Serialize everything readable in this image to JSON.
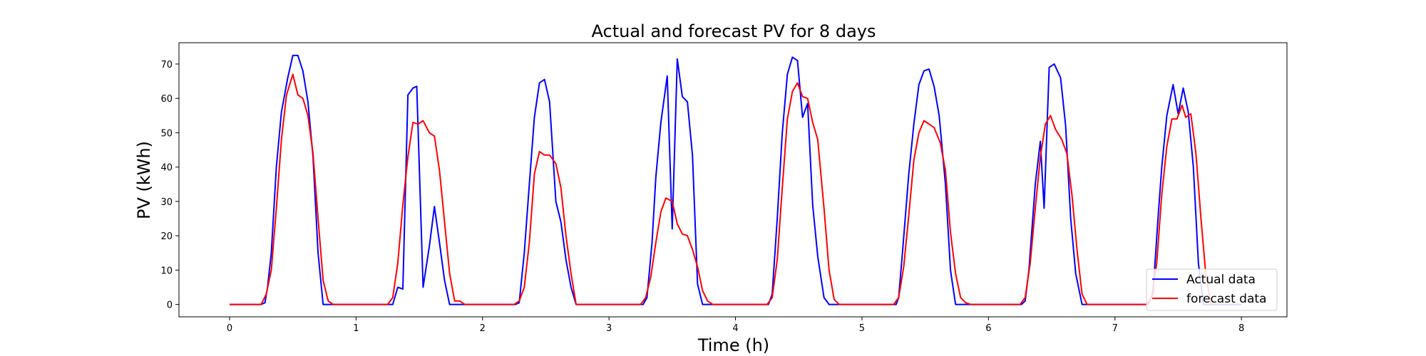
{
  "chart_data": {
    "type": "line",
    "title": "Actual and forecast PV for 8 days",
    "xlabel": "Time (h)",
    "ylabel": "PV (kWh)",
    "xlim": [
      -0.4,
      8.36
    ],
    "ylim": [
      -3.6,
      76.2
    ],
    "xticks": [
      0,
      1,
      2,
      3,
      4,
      5,
      6,
      7,
      8
    ],
    "yticks": [
      0,
      10,
      20,
      30,
      40,
      50,
      60,
      70
    ],
    "grid": false,
    "legend_position": "lower-right",
    "series": [
      {
        "name": "Actual data",
        "color": "#0000ff",
        "points": [
          [
            0,
            0
          ],
          [
            0.25,
            0
          ],
          [
            0.28,
            0.5
          ],
          [
            0.3,
            5
          ],
          [
            0.33,
            15
          ],
          [
            0.37,
            40
          ],
          [
            0.41,
            56
          ],
          [
            0.46,
            66
          ],
          [
            0.5,
            72.5
          ],
          [
            0.54,
            72.5
          ],
          [
            0.58,
            68
          ],
          [
            0.62,
            59
          ],
          [
            0.66,
            43
          ],
          [
            0.7,
            15
          ],
          [
            0.74,
            0
          ],
          [
            1,
            0
          ],
          [
            1.29,
            0
          ],
          [
            1.33,
            5
          ],
          [
            1.37,
            4.5
          ],
          [
            1.41,
            61
          ],
          [
            1.45,
            63
          ],
          [
            1.48,
            63.5
          ],
          [
            1.53,
            5
          ],
          [
            1.58,
            17
          ],
          [
            1.62,
            28.5
          ],
          [
            1.66,
            18
          ],
          [
            1.7,
            7
          ],
          [
            1.74,
            0
          ],
          [
            2,
            0
          ],
          [
            2.26,
            0
          ],
          [
            2.29,
            0.5
          ],
          [
            2.33,
            15
          ],
          [
            2.37,
            35
          ],
          [
            2.41,
            54.5
          ],
          [
            2.45,
            64.5
          ],
          [
            2.49,
            65.5
          ],
          [
            2.53,
            59
          ],
          [
            2.58,
            30
          ],
          [
            2.62,
            24
          ],
          [
            2.66,
            13
          ],
          [
            2.7,
            5
          ],
          [
            2.74,
            0
          ],
          [
            3,
            0
          ],
          [
            3.27,
            0
          ],
          [
            3.3,
            2
          ],
          [
            3.34,
            18
          ],
          [
            3.37,
            37
          ],
          [
            3.41,
            53
          ],
          [
            3.46,
            66.5
          ],
          [
            3.5,
            22
          ],
          [
            3.54,
            71.5
          ],
          [
            3.58,
            60.5
          ],
          [
            3.62,
            59
          ],
          [
            3.66,
            43.5
          ],
          [
            3.7,
            6
          ],
          [
            3.74,
            0
          ],
          [
            4,
            0
          ],
          [
            4.26,
            0
          ],
          [
            4.29,
            3
          ],
          [
            4.33,
            25
          ],
          [
            4.37,
            50
          ],
          [
            4.41,
            67
          ],
          [
            4.45,
            72
          ],
          [
            4.49,
            71
          ],
          [
            4.53,
            54.5
          ],
          [
            4.57,
            58.5
          ],
          [
            4.61,
            29
          ],
          [
            4.65,
            14
          ],
          [
            4.7,
            2
          ],
          [
            4.74,
            0
          ],
          [
            5,
            0
          ],
          [
            5.27,
            0
          ],
          [
            5.29,
            2
          ],
          [
            5.32,
            15
          ],
          [
            5.37,
            38
          ],
          [
            5.41,
            52.5
          ],
          [
            5.45,
            64
          ],
          [
            5.49,
            68
          ],
          [
            5.53,
            68.5
          ],
          [
            5.57,
            63.5
          ],
          [
            5.61,
            55
          ],
          [
            5.66,
            35
          ],
          [
            5.7,
            10
          ],
          [
            5.74,
            0
          ],
          [
            6,
            0
          ],
          [
            6.26,
            0
          ],
          [
            6.29,
            1
          ],
          [
            6.32,
            10
          ],
          [
            6.37,
            35
          ],
          [
            6.41,
            47.5
          ],
          [
            6.44,
            28
          ],
          [
            6.48,
            69
          ],
          [
            6.52,
            70
          ],
          [
            6.57,
            66
          ],
          [
            6.61,
            52
          ],
          [
            6.65,
            25
          ],
          [
            6.69,
            9
          ],
          [
            6.74,
            0
          ],
          [
            7,
            0
          ],
          [
            7.26,
            0
          ],
          [
            7.3,
            3
          ],
          [
            7.34,
            25
          ],
          [
            7.37,
            40
          ],
          [
            7.41,
            55
          ],
          [
            7.46,
            64
          ],
          [
            7.5,
            55.5
          ],
          [
            7.54,
            63
          ],
          [
            7.58,
            56
          ],
          [
            7.62,
            40
          ],
          [
            7.66,
            12
          ],
          [
            7.7,
            0
          ],
          [
            8,
            0
          ]
        ]
      },
      {
        "name": "forecast data",
        "color": "#ff0000",
        "points": [
          [
            0,
            0
          ],
          [
            0.25,
            0
          ],
          [
            0.29,
            3
          ],
          [
            0.33,
            10
          ],
          [
            0.37,
            28
          ],
          [
            0.41,
            48
          ],
          [
            0.45,
            61
          ],
          [
            0.5,
            67
          ],
          [
            0.54,
            61
          ],
          [
            0.58,
            60
          ],
          [
            0.62,
            55
          ],
          [
            0.66,
            44
          ],
          [
            0.7,
            25
          ],
          [
            0.74,
            7
          ],
          [
            0.78,
            1
          ],
          [
            0.82,
            0
          ],
          [
            1,
            0
          ],
          [
            1.25,
            0
          ],
          [
            1.29,
            2
          ],
          [
            1.33,
            12
          ],
          [
            1.37,
            29
          ],
          [
            1.41,
            43
          ],
          [
            1.45,
            53
          ],
          [
            1.49,
            52.5
          ],
          [
            1.53,
            53.5
          ],
          [
            1.58,
            50
          ],
          [
            1.62,
            49
          ],
          [
            1.66,
            39
          ],
          [
            1.7,
            24
          ],
          [
            1.74,
            9
          ],
          [
            1.78,
            1
          ],
          [
            1.82,
            1
          ],
          [
            1.86,
            0
          ],
          [
            2,
            0
          ],
          [
            2.25,
            0
          ],
          [
            2.29,
            1
          ],
          [
            2.33,
            5
          ],
          [
            2.37,
            18
          ],
          [
            2.41,
            38
          ],
          [
            2.45,
            44.5
          ],
          [
            2.49,
            43.5
          ],
          [
            2.53,
            43.5
          ],
          [
            2.58,
            41
          ],
          [
            2.62,
            34
          ],
          [
            2.66,
            20
          ],
          [
            2.7,
            9
          ],
          [
            2.74,
            0
          ],
          [
            3,
            0
          ],
          [
            3.25,
            0
          ],
          [
            3.29,
            2
          ],
          [
            3.33,
            8
          ],
          [
            3.37,
            18
          ],
          [
            3.41,
            27
          ],
          [
            3.45,
            31
          ],
          [
            3.5,
            30
          ],
          [
            3.54,
            23.5
          ],
          [
            3.58,
            20.5
          ],
          [
            3.62,
            20
          ],
          [
            3.66,
            16
          ],
          [
            3.7,
            11
          ],
          [
            3.74,
            4
          ],
          [
            3.78,
            1
          ],
          [
            3.82,
            0
          ],
          [
            4,
            0
          ],
          [
            4.25,
            0
          ],
          [
            4.29,
            2
          ],
          [
            4.33,
            13
          ],
          [
            4.37,
            34
          ],
          [
            4.41,
            54
          ],
          [
            4.45,
            62
          ],
          [
            4.49,
            64.5
          ],
          [
            4.53,
            60.5
          ],
          [
            4.57,
            60
          ],
          [
            4.61,
            53
          ],
          [
            4.65,
            48
          ],
          [
            4.7,
            28
          ],
          [
            4.74,
            10
          ],
          [
            4.78,
            1.5
          ],
          [
            4.82,
            0
          ],
          [
            5,
            0
          ],
          [
            5.25,
            0
          ],
          [
            5.29,
            2
          ],
          [
            5.33,
            11
          ],
          [
            5.37,
            26
          ],
          [
            5.41,
            42
          ],
          [
            5.45,
            50
          ],
          [
            5.49,
            53.5
          ],
          [
            5.53,
            52.5
          ],
          [
            5.57,
            51.5
          ],
          [
            5.62,
            47
          ],
          [
            5.66,
            39
          ],
          [
            5.7,
            21
          ],
          [
            5.74,
            9
          ],
          [
            5.78,
            2
          ],
          [
            5.82,
            0.5
          ],
          [
            5.86,
            0
          ],
          [
            6,
            0
          ],
          [
            6.25,
            0
          ],
          [
            6.29,
            2
          ],
          [
            6.33,
            12
          ],
          [
            6.37,
            28
          ],
          [
            6.41,
            43
          ],
          [
            6.45,
            52.5
          ],
          [
            6.49,
            55
          ],
          [
            6.53,
            51
          ],
          [
            6.58,
            48
          ],
          [
            6.62,
            44
          ],
          [
            6.66,
            32
          ],
          [
            6.7,
            16
          ],
          [
            6.74,
            3
          ],
          [
            6.78,
            0
          ],
          [
            7,
            0
          ],
          [
            7.25,
            0
          ],
          [
            7.29,
            2
          ],
          [
            7.33,
            12
          ],
          [
            7.37,
            32
          ],
          [
            7.41,
            46
          ],
          [
            7.45,
            54
          ],
          [
            7.49,
            54
          ],
          [
            7.53,
            58
          ],
          [
            7.56,
            54.5
          ],
          [
            7.6,
            55.5
          ],
          [
            7.64,
            44
          ],
          [
            7.68,
            25
          ],
          [
            7.72,
            8
          ],
          [
            7.76,
            0
          ]
        ]
      }
    ]
  }
}
